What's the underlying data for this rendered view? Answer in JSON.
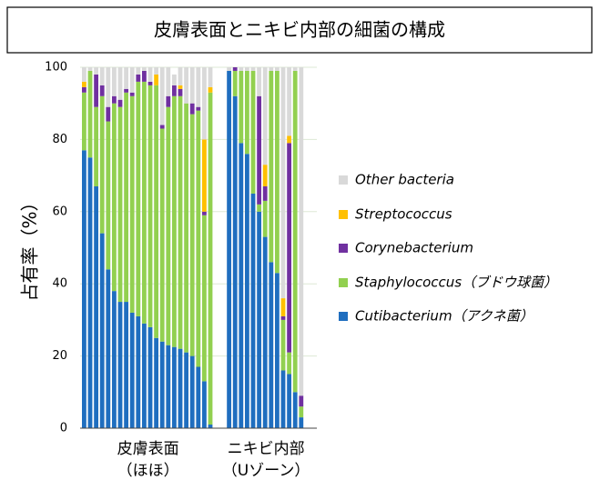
{
  "chart_data": {
    "type": "stacked_bar",
    "title": "皮膚表面とニキビ内部の細菌の構成",
    "ylabel": "占有率（%）",
    "ylim": [
      0,
      100
    ],
    "yticks": [
      0,
      20,
      40,
      60,
      80,
      100
    ],
    "grid": true,
    "legend": "right",
    "groups": [
      {
        "label": "皮膚表面",
        "sublabel": "（ほほ）"
      },
      {
        "label": "ニキビ内部",
        "sublabel": "（Uゾーン）"
      }
    ],
    "series": [
      {
        "name": "Cutibacterium（アクネ菌）",
        "color": "#1f6ebf",
        "values": [
          [
            77,
            75,
            67,
            54,
            44,
            38,
            35,
            35,
            32,
            31,
            29,
            28,
            25,
            24,
            23,
            22.5,
            22,
            21,
            20,
            17,
            13,
            1
          ],
          [
            99,
            92,
            79,
            76,
            65,
            60,
            53,
            46,
            43,
            16,
            15,
            10,
            3
          ]
        ]
      },
      {
        "name": "Staphylococcus（ブドウ球菌）",
        "color": "#92d050",
        "values": [
          [
            16,
            24,
            22,
            38,
            41,
            52,
            54,
            58,
            60,
            65,
            67,
            67,
            70,
            59,
            66,
            69.5,
            70,
            69,
            67,
            71,
            46,
            92
          ],
          [
            0,
            7,
            20,
            23,
            34,
            2,
            10,
            53,
            56,
            14,
            6,
            89,
            3
          ]
        ]
      },
      {
        "name": "Corynebacterium",
        "color": "#7030a0",
        "values": [
          [
            1.5,
            0,
            9,
            3,
            4,
            2,
            2,
            1,
            1,
            2,
            3,
            1,
            0,
            1,
            3,
            3,
            2,
            0,
            3,
            1,
            1,
            0
          ],
          [
            0,
            1,
            0,
            0,
            0,
            30,
            4,
            0,
            0,
            1,
            58,
            0,
            3
          ]
        ]
      },
      {
        "name": "Streptococcus",
        "color": "#ffc000",
        "values": [
          [
            1.5,
            0,
            0,
            0,
            0,
            0,
            0,
            0,
            0,
            0,
            0,
            0,
            3,
            0,
            0,
            0,
            1,
            0,
            0,
            0,
            20,
            1.5
          ],
          [
            0,
            0,
            0,
            0,
            0,
            0,
            6,
            0,
            0,
            5,
            2,
            0,
            0
          ]
        ]
      },
      {
        "name": "Other bacteria",
        "color": "#d9d9d9",
        "values": [
          [
            4,
            1,
            2,
            5,
            11,
            8,
            9,
            6,
            7,
            2,
            1,
            4,
            2,
            16,
            8,
            3,
            5,
            10,
            10,
            11,
            20,
            5.5
          ],
          [
            1,
            0,
            1,
            1,
            1,
            8,
            27,
            1,
            1,
            64,
            19,
            1,
            91
          ]
        ]
      }
    ]
  }
}
